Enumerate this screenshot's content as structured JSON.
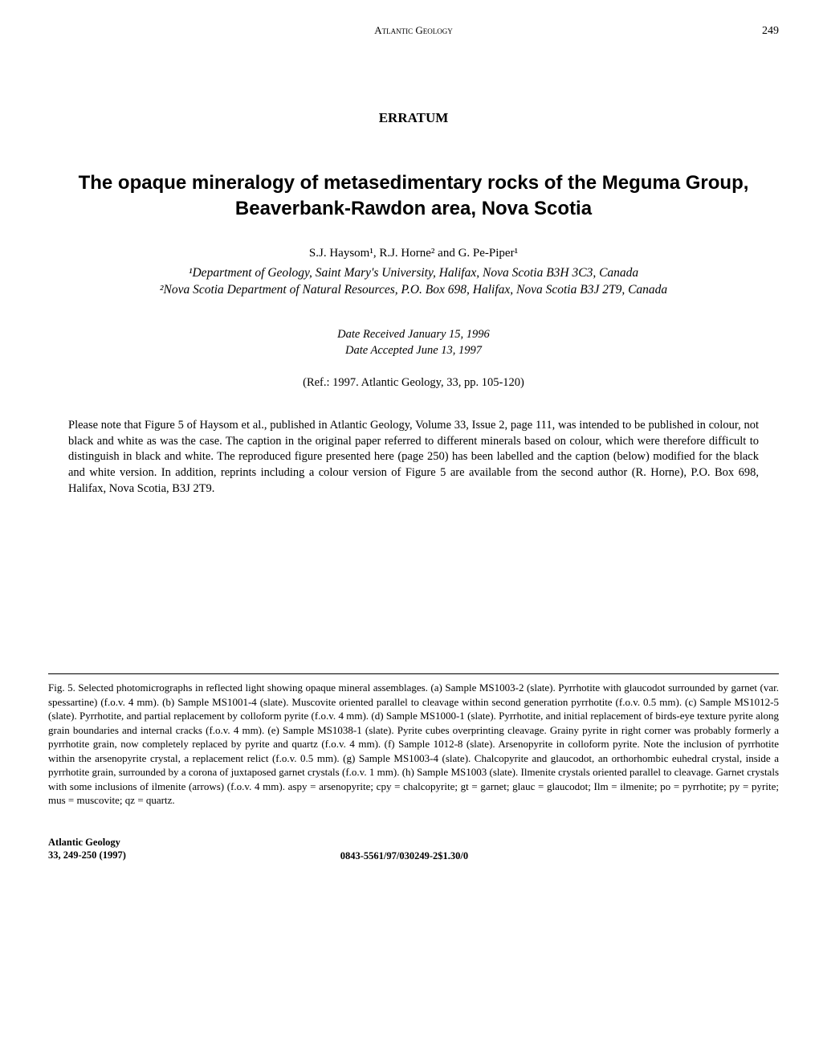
{
  "header": {
    "journal_name": "Atlantic Geology",
    "page_number": "249"
  },
  "erratum_label": "ERRATUM",
  "title": "The opaque mineralogy of metasedimentary rocks of the Meguma Group, Beaverbank-Rawdon area, Nova Scotia",
  "authors": "S.J. Haysom¹, R.J. Horne² and G. Pe-Piper¹",
  "affiliation1": "¹Department of Geology, Saint Mary's University, Halifax, Nova Scotia B3H 3C3, Canada",
  "affiliation2": "²Nova Scotia Department of Natural Resources, P.O. Box 698, Halifax, Nova Scotia B3J 2T9, Canada",
  "date_received": "Date Received January 15, 1996",
  "date_accepted": "Date Accepted June 13, 1997",
  "reference": "(Ref.: 1997. Atlantic Geology, 33, pp. 105-120)",
  "body": "Please note that Figure 5 of Haysom et al., published in Atlantic Geology, Volume 33, Issue 2, page 111, was intended to be published in colour, not black and white as was the case. The caption in the original paper referred to different minerals based on colour, which were therefore difficult to distinguish in black and white. The reproduced figure presented here (page 250) has been labelled and the caption (below) modified for the black and white version. In addition, reprints including a colour version of Figure 5 are available from the second author (R. Horne), P.O. Box 698, Halifax, Nova Scotia, B3J 2T9.",
  "figure_caption": "Fig. 5. Selected photomicrographs in reflected light showing opaque mineral assemblages. (a) Sample MS1003-2 (slate). Pyrrhotite with glaucodot surrounded by garnet (var. spessartine) (f.o.v. 4 mm). (b) Sample MS1001-4 (slate). Muscovite oriented parallel to cleavage within second generation pyrrhotite (f.o.v. 0.5 mm). (c) Sample MS1012-5 (slate). Pyrrhotite, and partial replacement by colloform pyrite (f.o.v. 4 mm). (d) Sample MS1000-1 (slate). Pyrrhotite, and initial replacement of birds-eye texture pyrite along grain boundaries and internal cracks (f.o.v. 4 mm). (e) Sample MS1038-1 (slate). Pyrite cubes overprinting cleavage. Grainy pyrite in right corner was probably formerly a pyrrhotite grain, now completely replaced by pyrite and quartz (f.o.v. 4 mm). (f) Sample 1012-8 (slate). Arsenopyrite in colloform pyrite. Note the inclusion of pyrrhotite within the arsenopyrite crystal, a replacement relict (f.o.v. 0.5 mm). (g) Sample MS1003-4 (slate). Chalcopyrite and glaucodot, an orthorhombic euhedral crystal, inside a pyrrhotite grain, surrounded by a corona of juxtaposed garnet crystals (f.o.v. 1 mm). (h) Sample MS1003 (slate). Ilmenite crystals oriented parallel to cleavage. Garnet crystals with some inclusions of ilmenite (arrows) (f.o.v. 4 mm). aspy = arsenopyrite; cpy = chalcopyrite; gt = garnet; glauc = glaucodot; Ilm = ilmenite; po = pyrrhotite; py = pyrite; mus = muscovite; qz = quartz.",
  "footer": {
    "journal": "Atlantic Geology",
    "citation": "33, 249-250 (1997)",
    "code": "0843-5561/97/030249-2$1.30/0"
  }
}
